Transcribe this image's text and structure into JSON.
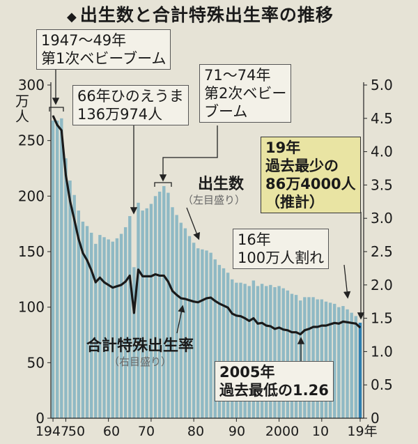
{
  "title": "出生数と合計特殊出生率の推移",
  "unit_left": [
    "万",
    "人"
  ],
  "annotations": {
    "boom1": "1947～49年\n第1次ベビーブーム",
    "hinoeuma": "66年ひのえうま\n136万974人",
    "boom2": "71～74年\n第2次ベビー\nブーム",
    "record_low_births": "19年\n過去最少の\n86万4000人\n（推計）",
    "below_million": "16年\n100万人割れ",
    "record_low_tfr": "2005年\n過去最低の1.26"
  },
  "series_labels": {
    "births": "出生数",
    "births_axis": "（左目盛り）",
    "tfr": "合計特殊出生率",
    "tfr_axis": "（右目盛り）"
  },
  "chart_data": {
    "type": "bar",
    "title": "出生数と合計特殊出生率の推移",
    "x_tick_labels": [
      "1947",
      "50",
      "60",
      "70",
      "80",
      "90",
      "2000",
      "10",
      "19年"
    ],
    "y_left": {
      "unit": "万人",
      "range": [
        0,
        300
      ],
      "ticks": [
        "0",
        "50",
        "100",
        "150",
        "200",
        "250",
        "300"
      ]
    },
    "y_right": {
      "range": [
        0,
        5.0
      ],
      "ticks": [
        "0",
        "0.5",
        "1.0",
        "1.5",
        "2.0",
        "2.5",
        "3.0",
        "3.5",
        "4.0",
        "4.5",
        "5.0"
      ]
    },
    "x": [
      1947,
      1948,
      1949,
      1950,
      1951,
      1952,
      1953,
      1954,
      1955,
      1956,
      1957,
      1958,
      1959,
      1960,
      1961,
      1962,
      1963,
      1964,
      1965,
      1966,
      1967,
      1968,
      1969,
      1970,
      1971,
      1972,
      1973,
      1974,
      1975,
      1976,
      1977,
      1978,
      1979,
      1980,
      1981,
      1982,
      1983,
      1984,
      1985,
      1986,
      1987,
      1988,
      1989,
      1990,
      1991,
      1992,
      1993,
      1994,
      1995,
      1996,
      1997,
      1998,
      1999,
      2000,
      2001,
      2002,
      2003,
      2004,
      2005,
      2006,
      2007,
      2008,
      2009,
      2010,
      2011,
      2012,
      2013,
      2014,
      2015,
      2016,
      2017,
      2018,
      2019
    ],
    "series": [
      {
        "name": "出生数",
        "axis": "left",
        "type": "bar",
        "values": [
          268,
          268,
          270,
          234,
          214,
          201,
          187,
          177,
          173,
          167,
          157,
          165,
          163,
          161,
          159,
          162,
          166,
          172,
          182,
          136,
          194,
          187,
          189,
          193,
          200,
          204,
          209,
          203,
          190,
          183,
          176,
          171,
          164,
          158,
          153,
          152,
          151,
          149,
          143,
          138,
          135,
          131,
          125,
          122,
          122,
          121,
          119,
          124,
          119,
          121,
          119,
          120,
          118,
          119,
          117,
          115,
          112,
          111,
          106,
          109,
          109,
          109,
          107,
          107,
          105,
          104,
          103,
          100,
          101,
          98,
          95,
          92,
          86
        ]
      },
      {
        "name": "合計特殊出生率",
        "axis": "right",
        "type": "line",
        "values": [
          4.54,
          4.4,
          4.32,
          3.65,
          3.26,
          2.98,
          2.69,
          2.48,
          2.37,
          2.22,
          2.04,
          2.11,
          2.04,
          2.0,
          1.96,
          1.98,
          2.0,
          2.05,
          2.14,
          1.58,
          2.23,
          2.13,
          2.13,
          2.13,
          2.16,
          2.14,
          2.14,
          2.05,
          1.91,
          1.85,
          1.8,
          1.79,
          1.77,
          1.75,
          1.74,
          1.77,
          1.8,
          1.81,
          1.76,
          1.72,
          1.69,
          1.66,
          1.57,
          1.54,
          1.53,
          1.5,
          1.46,
          1.5,
          1.42,
          1.43,
          1.39,
          1.38,
          1.34,
          1.36,
          1.33,
          1.32,
          1.29,
          1.29,
          1.26,
          1.32,
          1.34,
          1.37,
          1.37,
          1.39,
          1.39,
          1.41,
          1.43,
          1.42,
          1.45,
          1.44,
          1.43,
          1.42,
          1.36
        ]
      }
    ],
    "colors": {
      "bars": "#8fb9c4",
      "bar_last": "#2f7fb0",
      "line": "#1a1a1a"
    }
  }
}
